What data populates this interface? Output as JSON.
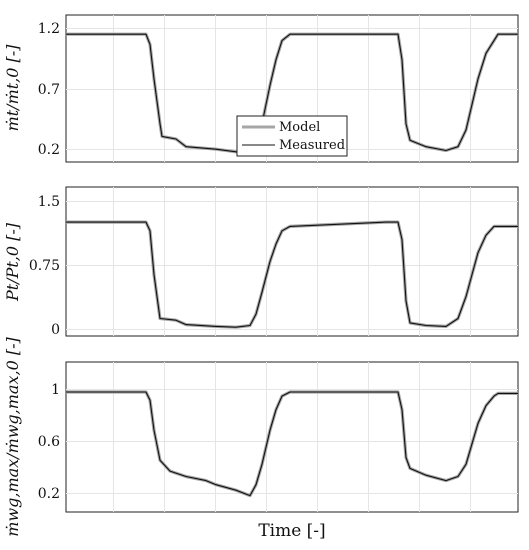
{
  "chart_data": [
    {
      "type": "line",
      "ylabel": "ṁt/ṁt,0 [-]",
      "ylim": [
        0.1,
        1.25
      ],
      "yticks": [
        0.2,
        0.7,
        1.2
      ],
      "ytick_labels": [
        "0.2",
        "0.7",
        "1.2"
      ],
      "grid": true,
      "legend": {
        "placement": "center",
        "entries": [
          "Model",
          "Measured"
        ]
      },
      "series": [
        {
          "name": "Model",
          "color": "#a6a6a6",
          "knots": [
            [
              0,
              1.1
            ],
            [
              40,
              1.1
            ],
            [
              42,
              1.02
            ],
            [
              44,
              0.75
            ],
            [
              47,
              0.4
            ],
            [
              48,
              0.3
            ],
            [
              55,
              0.28
            ],
            [
              60,
              0.22
            ],
            [
              75,
              0.2
            ],
            [
              85,
              0.18
            ],
            [
              92,
              0.16
            ],
            [
              95,
              0.23
            ],
            [
              98,
              0.4
            ],
            [
              102,
              0.7
            ],
            [
              105,
              0.9
            ],
            [
              108,
              1.05
            ],
            [
              112,
              1.1
            ],
            [
              160,
              1.1
            ],
            [
              166,
              1.1
            ],
            [
              168,
              0.9
            ],
            [
              170,
              0.4
            ],
            [
              172,
              0.27
            ],
            [
              180,
              0.22
            ],
            [
              190,
              0.19
            ],
            [
              196,
              0.22
            ],
            [
              200,
              0.35
            ],
            [
              203,
              0.55
            ],
            [
              206,
              0.75
            ],
            [
              210,
              0.95
            ],
            [
              214,
              1.05
            ],
            [
              216,
              1.1
            ],
            [
              226,
              1.1
            ]
          ]
        },
        {
          "name": "Measured",
          "color": "#111111",
          "knots": [
            [
              0,
              1.1
            ],
            [
              40,
              1.1
            ],
            [
              42,
              1.02
            ],
            [
              44,
              0.75
            ],
            [
              47,
              0.4
            ],
            [
              48,
              0.3
            ],
            [
              55,
              0.28
            ],
            [
              60,
              0.22
            ],
            [
              75,
              0.2
            ],
            [
              85,
              0.18
            ],
            [
              92,
              0.16
            ],
            [
              95,
              0.23
            ],
            [
              98,
              0.4
            ],
            [
              102,
              0.7
            ],
            [
              105,
              0.9
            ],
            [
              108,
              1.05
            ],
            [
              112,
              1.1
            ],
            [
              160,
              1.1
            ],
            [
              166,
              1.1
            ],
            [
              168,
              0.9
            ],
            [
              170,
              0.4
            ],
            [
              172,
              0.27
            ],
            [
              180,
              0.22
            ],
            [
              190,
              0.19
            ],
            [
              196,
              0.22
            ],
            [
              200,
              0.35
            ],
            [
              203,
              0.55
            ],
            [
              206,
              0.75
            ],
            [
              210,
              0.95
            ],
            [
              214,
              1.05
            ],
            [
              216,
              1.1
            ],
            [
              226,
              1.1
            ]
          ]
        }
      ]
    },
    {
      "type": "line",
      "ylabel": "Pt/Pt,0 [-]",
      "ylim": [
        -0.1,
        1.6
      ],
      "yticks": [
        0,
        0.75,
        1.5
      ],
      "ytick_labels": [
        "0",
        "0.75",
        "1.5"
      ],
      "grid": true,
      "series": [
        {
          "name": "Model",
          "color": "#a6a6a6",
          "knots": [
            [
              0,
              1.2
            ],
            [
              40,
              1.2
            ],
            [
              42,
              1.1
            ],
            [
              44,
              0.6
            ],
            [
              47,
              0.1
            ],
            [
              55,
              0.08
            ],
            [
              60,
              0.03
            ],
            [
              75,
              0.01
            ],
            [
              85,
              0.0
            ],
            [
              92,
              0.02
            ],
            [
              95,
              0.15
            ],
            [
              98,
              0.4
            ],
            [
              102,
              0.75
            ],
            [
              105,
              0.95
            ],
            [
              108,
              1.1
            ],
            [
              112,
              1.15
            ],
            [
              160,
              1.2
            ],
            [
              166,
              1.2
            ],
            [
              168,
              1.0
            ],
            [
              170,
              0.3
            ],
            [
              172,
              0.05
            ],
            [
              180,
              0.02
            ],
            [
              190,
              0.01
            ],
            [
              196,
              0.1
            ],
            [
              200,
              0.35
            ],
            [
              203,
              0.6
            ],
            [
              206,
              0.85
            ],
            [
              210,
              1.05
            ],
            [
              214,
              1.15
            ],
            [
              216,
              1.15
            ],
            [
              226,
              1.15
            ]
          ]
        },
        {
          "name": "Measured",
          "color": "#111111",
          "knots": [
            [
              0,
              1.2
            ],
            [
              40,
              1.2
            ],
            [
              42,
              1.1
            ],
            [
              44,
              0.6
            ],
            [
              47,
              0.1
            ],
            [
              55,
              0.08
            ],
            [
              60,
              0.03
            ],
            [
              75,
              0.01
            ],
            [
              85,
              0.0
            ],
            [
              92,
              0.02
            ],
            [
              95,
              0.15
            ],
            [
              98,
              0.4
            ],
            [
              102,
              0.75
            ],
            [
              105,
              0.95
            ],
            [
              108,
              1.1
            ],
            [
              112,
              1.15
            ],
            [
              160,
              1.2
            ],
            [
              166,
              1.2
            ],
            [
              168,
              1.0
            ],
            [
              170,
              0.3
            ],
            [
              172,
              0.05
            ],
            [
              180,
              0.02
            ],
            [
              190,
              0.01
            ],
            [
              196,
              0.1
            ],
            [
              200,
              0.35
            ],
            [
              203,
              0.6
            ],
            [
              206,
              0.85
            ],
            [
              210,
              1.05
            ],
            [
              214,
              1.15
            ],
            [
              216,
              1.15
            ],
            [
              226,
              1.15
            ]
          ]
        }
      ]
    },
    {
      "type": "line",
      "ylabel": "ṁwg,max/ṁwg,max,0 [-]",
      "ylim": [
        0.1,
        1.2
      ],
      "yticks": [
        0.2,
        0.6,
        1.0
      ],
      "ytick_labels": [
        "0.2",
        "0.6",
        "1"
      ],
      "xlabel": "Time [-]",
      "grid": true,
      "series": [
        {
          "name": "Model",
          "color": "#a6a6a6",
          "knots": [
            [
              0,
              0.98
            ],
            [
              40,
              0.98
            ],
            [
              42,
              0.92
            ],
            [
              44,
              0.7
            ],
            [
              47,
              0.48
            ],
            [
              52,
              0.4
            ],
            [
              60,
              0.36
            ],
            [
              70,
              0.33
            ],
            [
              75,
              0.3
            ],
            [
              85,
              0.26
            ],
            [
              92,
              0.22
            ],
            [
              95,
              0.3
            ],
            [
              98,
              0.45
            ],
            [
              102,
              0.7
            ],
            [
              105,
              0.85
            ],
            [
              108,
              0.95
            ],
            [
              112,
              0.98
            ],
            [
              160,
              0.98
            ],
            [
              166,
              0.98
            ],
            [
              168,
              0.85
            ],
            [
              170,
              0.5
            ],
            [
              172,
              0.42
            ],
            [
              180,
              0.37
            ],
            [
              190,
              0.33
            ],
            [
              196,
              0.36
            ],
            [
              200,
              0.45
            ],
            [
              203,
              0.6
            ],
            [
              206,
              0.75
            ],
            [
              210,
              0.88
            ],
            [
              214,
              0.95
            ],
            [
              216,
              0.97
            ],
            [
              226,
              0.97
            ]
          ]
        },
        {
          "name": "Measured",
          "color": "#111111",
          "knots": [
            [
              0,
              0.98
            ],
            [
              40,
              0.98
            ],
            [
              42,
              0.92
            ],
            [
              44,
              0.7
            ],
            [
              47,
              0.48
            ],
            [
              52,
              0.4
            ],
            [
              60,
              0.36
            ],
            [
              70,
              0.33
            ],
            [
              75,
              0.3
            ],
            [
              85,
              0.26
            ],
            [
              92,
              0.22
            ],
            [
              95,
              0.3
            ],
            [
              98,
              0.45
            ],
            [
              102,
              0.7
            ],
            [
              105,
              0.85
            ],
            [
              108,
              0.95
            ],
            [
              112,
              0.98
            ],
            [
              160,
              0.98
            ],
            [
              166,
              0.98
            ],
            [
              168,
              0.85
            ],
            [
              170,
              0.5
            ],
            [
              172,
              0.42
            ],
            [
              180,
              0.37
            ],
            [
              190,
              0.33
            ],
            [
              196,
              0.36
            ],
            [
              200,
              0.45
            ],
            [
              203,
              0.6
            ],
            [
              206,
              0.75
            ],
            [
              210,
              0.88
            ],
            [
              214,
              0.95
            ],
            [
              216,
              0.97
            ],
            [
              226,
              0.97
            ]
          ]
        }
      ]
    }
  ],
  "xrange": [
    0,
    226
  ]
}
